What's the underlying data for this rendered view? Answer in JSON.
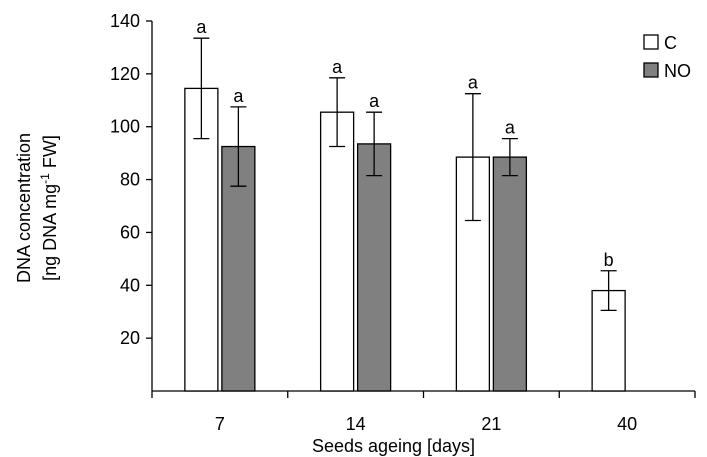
{
  "chart_data": {
    "type": "bar",
    "categories": [
      "7",
      "14",
      "21",
      "40"
    ],
    "series": [
      {
        "name": "C",
        "color": "#ffffff",
        "values": [
          114.5,
          105.5,
          88.5,
          38
        ],
        "errors": [
          19,
          13,
          24,
          7.5
        ],
        "significance": [
          "a",
          "a",
          "a",
          "b"
        ]
      },
      {
        "name": "NO",
        "color": "#808080",
        "values": [
          92.5,
          93.5,
          88.5,
          null
        ],
        "errors": [
          15,
          12,
          7,
          null
        ],
        "significance": [
          "a",
          "a",
          "a",
          ""
        ]
      }
    ],
    "ylim": [
      0,
      140
    ],
    "yticks": [
      "20",
      "40",
      "60",
      "80",
      "100",
      "120",
      "140"
    ],
    "xlabel": "Seeds ageing [days]",
    "ylabel_line1": "DNA concentration",
    "ylabel_line2_prefix": "[ng DNA mg",
    "ylabel_line2_sup": "-1",
    "ylabel_line2_suffix": " FW]",
    "legend_position": "top-right",
    "grid": false
  }
}
